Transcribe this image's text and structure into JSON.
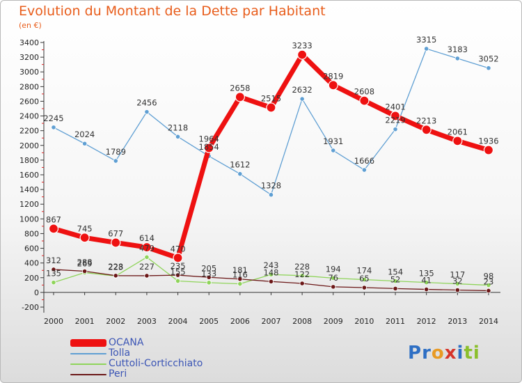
{
  "header": {
    "title": "Evolution du Montant de la Dette par Habitant",
    "subtitle": "(en €)"
  },
  "brand": {
    "letters": [
      {
        "ch": "P",
        "color": "#2e6fc4"
      },
      {
        "ch": "r",
        "color": "#2e6fc4"
      },
      {
        "ch": "o",
        "color": "#e89a24"
      },
      {
        "ch": "x",
        "color": "#d6342a"
      },
      {
        "ch": "i",
        "color": "#2e6fc4"
      },
      {
        "ch": "t",
        "color": "#8bbf2c"
      },
      {
        "ch": "i",
        "color": "#8bbf2c"
      }
    ]
  },
  "chart_data": {
    "type": "line",
    "x": [
      "2000",
      "2001",
      "2002",
      "2003",
      "2004",
      "2005",
      "2006",
      "2007",
      "2008",
      "2009",
      "2010",
      "2011",
      "2012",
      "2013",
      "2014"
    ],
    "ylim": [
      -200,
      3400
    ],
    "yticks": [
      -200,
      0,
      200,
      400,
      600,
      800,
      1000,
      1200,
      1400,
      1600,
      1800,
      2000,
      2200,
      2400,
      2600,
      2800,
      3000,
      3200,
      3400
    ],
    "grid": false,
    "legend_position": "bottom-left",
    "series": [
      {
        "name": "OCANA",
        "color": "#ee1111",
        "values": [
          867,
          745,
          677,
          614,
          470,
          1964,
          2658,
          2515,
          3233,
          2819,
          2608,
          2401,
          2213,
          2061,
          1936
        ],
        "labels": [
          "867",
          "745",
          "677",
          "614",
          "470",
          "1964",
          "2658",
          "2515",
          "3233",
          "2819",
          "2608",
          "2401",
          "2213",
          "2061",
          "1936"
        ]
      },
      {
        "name": "Tolla",
        "color": "#5f9fd3",
        "values": [
          2245,
          2024,
          1789,
          2456,
          2118,
          1854,
          1612,
          1328,
          2632,
          1931,
          1666,
          2219,
          3315,
          3183,
          3052
        ],
        "labels": [
          "2245",
          "2024",
          "1789",
          "2456",
          "2118",
          "1854",
          "1612",
          "1328",
          "2632",
          "1931",
          "1666",
          "2219",
          "3315",
          "3183",
          "3052"
        ]
      },
      {
        "name": "Cuttoli-Corticchiato",
        "color": "#8fd45a",
        "values": [
          135,
          269,
          223,
          479,
          155,
          133,
          116,
          243,
          228,
          194,
          174,
          154,
          135,
          117,
          98
        ],
        "labels": [
          "135",
          "269",
          "223",
          "479",
          "155",
          "133",
          "116",
          "243",
          "228",
          "194",
          "174",
          "154",
          "135",
          "117",
          "98"
        ]
      },
      {
        "name": "Peri",
        "color": "#6b1717",
        "values": [
          312,
          288,
          228,
          227,
          235,
          205,
          181,
          148,
          122,
          76,
          65,
          52,
          41,
          32,
          23
        ],
        "labels": [
          "312",
          "288",
          "228",
          "227",
          "235",
          "205",
          "181",
          "148",
          "122",
          "76",
          "65",
          "52",
          "41",
          "32",
          "23"
        ]
      }
    ]
  }
}
